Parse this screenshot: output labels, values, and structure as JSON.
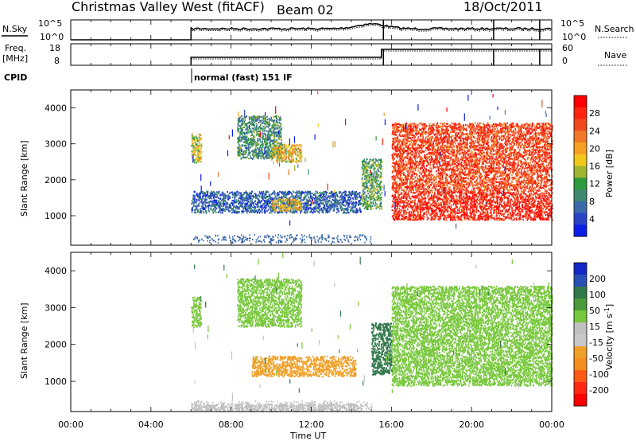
{
  "header": {
    "station": "Christmas Valley West (fitACF)",
    "beam": "Beam 02",
    "date": "18/Oct/2011"
  },
  "top_panels": {
    "nsky_label": "N.Sky",
    "nsky_ticks": [
      "10^5",
      "10^0"
    ],
    "nsearch_label": "N.Search",
    "nsearch_ticks": [
      "10^5",
      "10^0"
    ],
    "freq_label_1": "Freq.",
    "freq_label_2": "[MHz]",
    "freq_ticks": [
      "18",
      "8"
    ],
    "nave_label": "Nave",
    "nave_ticks": [
      "60",
      "0"
    ],
    "cpid_label": "CPID",
    "cpid_text": "normal (fast) 151 IF"
  },
  "colors": {
    "power_scale": [
      "#0a1ee6",
      "#2a44c8",
      "#3a6aa8",
      "#3f8a6e",
      "#2e9a3c",
      "#a0b432",
      "#f0c81c",
      "#f5a020",
      "#f07828",
      "#f04a1e",
      "#ff2410",
      "#ff0000"
    ],
    "velocity_scale": [
      "#1428c8",
      "#2850b4",
      "#32784b",
      "#4a9a3a",
      "#78c83c",
      "#c0c0c0",
      "#c8c8c8",
      "#f0a028",
      "#f58c1e",
      "#ff5a14",
      "#ff2814",
      "#ff0000"
    ]
  },
  "chart_data": [
    {
      "type": "heatmap",
      "panel": "power",
      "ylabel": "Slant Range [km]",
      "xlabel": "",
      "x_ticks": [
        "00:00",
        "04:00",
        "08:00",
        "12:00",
        "16:00",
        "20:00",
        "00:00"
      ],
      "y_ticks": [
        "1000",
        "2000",
        "3000",
        "4000"
      ],
      "xlim_hours": [
        0,
        24
      ],
      "ylim_km": [
        180,
        4500
      ],
      "colorbar_label": "Power [dB]",
      "colorbar_ticks": [
        "4",
        "8",
        "12",
        "16",
        "20",
        "24",
        "28"
      ],
      "colorbar_range": [
        0,
        32
      ],
      "data_start_hour": 6,
      "features": [
        {
          "t_start": 6.0,
          "t_end": 6.5,
          "r_start": 2500,
          "r_end": 3300,
          "level": 16
        },
        {
          "t_start": 8.3,
          "t_end": 10.5,
          "r_start": 2600,
          "r_end": 3800,
          "level": 10
        },
        {
          "t_start": 10.0,
          "t_end": 11.5,
          "r_start": 2500,
          "r_end": 3000,
          "level": 18
        },
        {
          "t_start": 6.0,
          "t_end": 14.5,
          "r_start": 1100,
          "r_end": 1700,
          "level": 6
        },
        {
          "t_start": 10.0,
          "t_end": 11.5,
          "r_start": 1150,
          "r_end": 1500,
          "level": 18
        },
        {
          "t_start": 14.5,
          "t_end": 15.5,
          "r_start": 1200,
          "r_end": 2600,
          "level": 12
        },
        {
          "t_start": 16.0,
          "t_end": 24.0,
          "r_start": 900,
          "r_end": 1700,
          "level": 28
        },
        {
          "t_start": 16.0,
          "t_end": 24.0,
          "r_start": 1700,
          "r_end": 3600,
          "level": 26
        }
      ]
    },
    {
      "type": "heatmap",
      "panel": "velocity",
      "ylabel": "Slant Range [km]",
      "xlabel": "Time UT",
      "x_ticks": [
        "00:00",
        "04:00",
        "08:00",
        "12:00",
        "16:00",
        "20:00",
        "00:00"
      ],
      "y_ticks": [
        "1000",
        "2000",
        "3000",
        "4000"
      ],
      "xlim_hours": [
        0,
        24
      ],
      "ylim_km": [
        180,
        4500
      ],
      "colorbar_label": "Velocity [m s^-1]",
      "colorbar_ticks": [
        "200",
        "100",
        "50",
        "15",
        "-15",
        "-50",
        "-100",
        "-200"
      ],
      "colorbar_range": [
        -250,
        250
      ],
      "data_start_hour": 6,
      "features": [
        {
          "t_start": 6.0,
          "t_end": 6.5,
          "r_start": 2500,
          "r_end": 3300,
          "level": 0
        },
        {
          "t_start": 8.3,
          "t_end": 11.5,
          "r_start": 2500,
          "r_end": 3800,
          "level": 0
        },
        {
          "t_start": 9.0,
          "t_end": 14.2,
          "r_start": 1150,
          "r_end": 1700,
          "level": -60
        },
        {
          "t_start": 15.0,
          "t_end": 16.0,
          "r_start": 1200,
          "r_end": 2600,
          "level": 30
        },
        {
          "t_start": 16.0,
          "t_end": 24.0,
          "r_start": 900,
          "r_end": 3600,
          "level": 0
        },
        {
          "t_start": 6.0,
          "t_end": 14.5,
          "r_start": 200,
          "r_end": 400,
          "level": -30
        }
      ]
    }
  ]
}
